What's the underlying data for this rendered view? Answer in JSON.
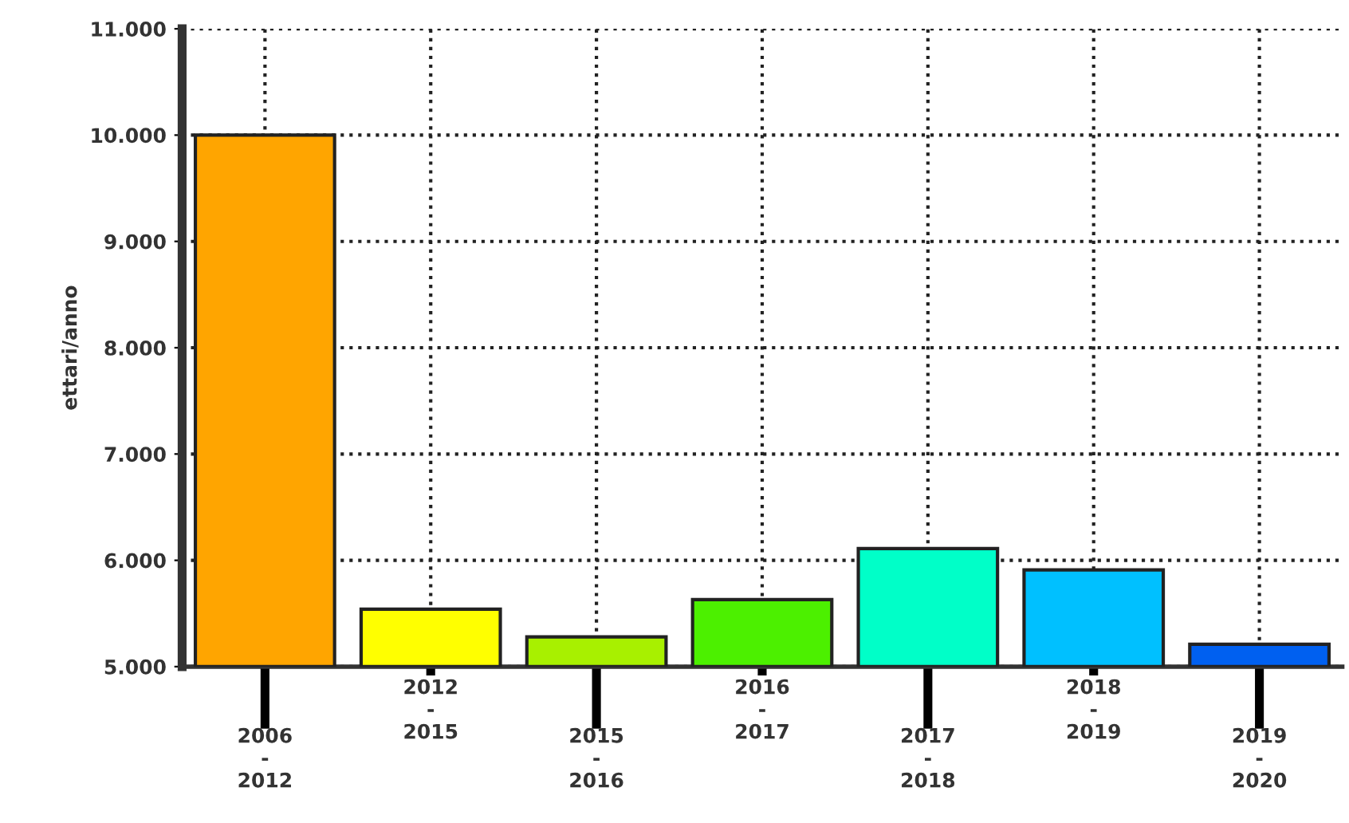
{
  "chart_data": {
    "type": "bar",
    "ylabel": "ettari/anno",
    "categories": [
      "2006\n-\n2012",
      "2012\n-\n2015",
      "2015\n-\n2016",
      "2016\n-\n2017",
      "2017\n-\n2018",
      "2018\n-\n2019",
      "2019\n-\n2020"
    ],
    "values": [
      10000,
      5540,
      5280,
      5630,
      6110,
      5910,
      5210
    ],
    "colors": [
      "#ffa500",
      "#ffff00",
      "#a8f000",
      "#4cf000",
      "#00ffc8",
      "#00c0ff",
      "#0060f0"
    ],
    "ylim": [
      5000,
      11000
    ],
    "yticks": [
      {
        "value": 5000,
        "label": "5.000"
      },
      {
        "value": 6000,
        "label": "6.000"
      },
      {
        "value": 7000,
        "label": "7.000"
      },
      {
        "value": 8000,
        "label": "8.000"
      },
      {
        "value": 9000,
        "label": "9.000"
      },
      {
        "value": 10000,
        "label": "10.000"
      },
      {
        "value": 11000,
        "label": "11.000"
      }
    ],
    "grid": true,
    "line_style": "dotted"
  }
}
